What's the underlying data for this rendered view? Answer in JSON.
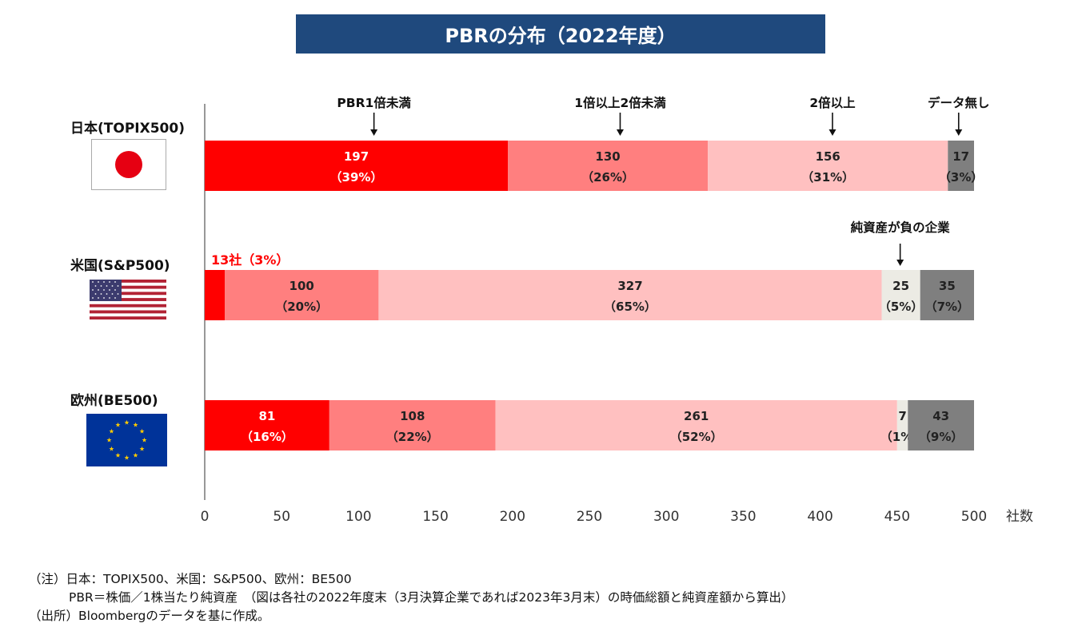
{
  "title": "PBRの分布（2022年度）",
  "colors": {
    "title_bg": "#1f497d",
    "below1": "#ff0000",
    "between1and2": "#ff7f7f",
    "above2": "#ffc0c0",
    "negative": "#ecebe4",
    "nodata": "#7f7f7f"
  },
  "chart_data": {
    "type": "bar",
    "orientation": "horizontal",
    "stacked": true,
    "title": "PBRの分布（2022年度）",
    "xlabel": "社数",
    "xlim": [
      0,
      500
    ],
    "xticks": [
      0,
      50,
      100,
      150,
      200,
      250,
      300,
      350,
      400,
      450,
      500
    ],
    "xtick_labels": [
      "0",
      "50",
      "100",
      "150",
      "200",
      "250",
      "300",
      "350",
      "400",
      "450",
      "500"
    ],
    "categories": [
      "日本(TOPIX500)",
      "米国(S&P500)",
      "欧州(BE500)"
    ],
    "series": [
      {
        "name": "PBR1倍未満",
        "color": "#ff0000",
        "values": [
          197,
          13,
          81
        ],
        "pct_labels": [
          "（39%）",
          "（3%）",
          "（16%）"
        ],
        "text_color": "#ffffff"
      },
      {
        "name": "1倍以上2倍未満",
        "color": "#ff7f7f",
        "values": [
          130,
          100,
          108
        ],
        "pct_labels": [
          "（26%）",
          "（20%）",
          "（22%）"
        ],
        "text_color": "#222222"
      },
      {
        "name": "2倍以上",
        "color": "#ffc0c0",
        "values": [
          156,
          327,
          261
        ],
        "pct_labels": [
          "（31%）",
          "（65%）",
          "（52%）"
        ],
        "text_color": "#222222"
      },
      {
        "name": "純資産が負の企業",
        "color": "#ecebe4",
        "values": [
          0,
          25,
          7
        ],
        "pct_labels": [
          "",
          "（5%）",
          "（1%）"
        ],
        "text_color": "#222222"
      },
      {
        "name": "データ無し",
        "color": "#7f7f7f",
        "values": [
          17,
          35,
          43
        ],
        "pct_labels": [
          "（3%）",
          "（7%）",
          "（9%）"
        ],
        "text_color": "#222222"
      }
    ],
    "annotations": {
      "us_small": "13社（3%）",
      "callouts": [
        {
          "text": "PBR1倍未満",
          "x": 110,
          "row": 0
        },
        {
          "text": "1倍以上2倍未満",
          "x": 270,
          "row": 0
        },
        {
          "text": "2倍以上",
          "x": 408,
          "row": 0
        },
        {
          "text": "データ無し",
          "x": 490,
          "row": 0
        },
        {
          "text": "純資産が負の企業",
          "x": 452,
          "row": 1
        }
      ]
    }
  },
  "notes": {
    "line1": "（注）日本：TOPIX500、米国：S&P500、欧州：BE500",
    "line2": "PBR＝株価／1株当たり純資産　（図は各社の2022年度末（3月決算企業であれば2023年3月末）の時価総額と純資産額から算出）",
    "line3": "（出所）Bloombergのデータを基に作成。"
  }
}
